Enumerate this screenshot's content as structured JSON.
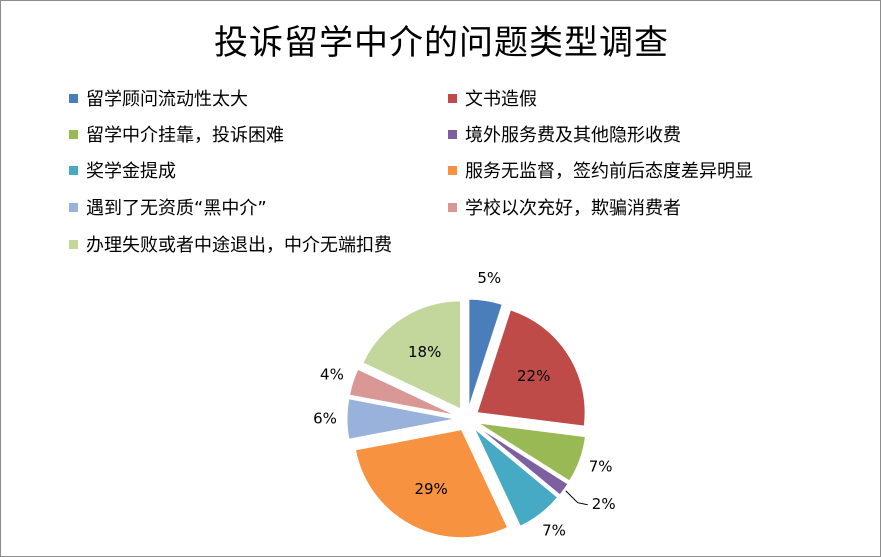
{
  "chart_data": {
    "type": "pie",
    "title": "投诉留学中介的问题类型调查",
    "legend_position": "top",
    "slices": [
      {
        "label": "留学顾问流动性太大",
        "value": 5,
        "display": "5%",
        "color": "#4a7ebb"
      },
      {
        "label": "文书造假",
        "value": 22,
        "display": "22%",
        "color": "#be4b48"
      },
      {
        "label": "留学中介挂靠，投诉困难",
        "value": 7,
        "display": "7%",
        "color": "#98b954"
      },
      {
        "label": "境外服务费及其他隐形收费",
        "value": 2,
        "display": "2%",
        "color": "#7d60a0"
      },
      {
        "label": "奖学金提成",
        "value": 7,
        "display": "7%",
        "color": "#46aac5"
      },
      {
        "label": "服务无监督，签约前后态度差异明显",
        "value": 29,
        "display": "29%",
        "color": "#f69240"
      },
      {
        "label": "遇到了无资质“黑中介”",
        "value": 6,
        "display": "6%",
        "color": "#98b2db"
      },
      {
        "label": "学校以次充好，欺骗消费者",
        "value": 4,
        "display": "4%",
        "color": "#d99795"
      },
      {
        "label": "办理失败或者中途退出，中介无端扣费",
        "value": 18,
        "display": "18%",
        "color": "#c3d69b"
      }
    ]
  }
}
